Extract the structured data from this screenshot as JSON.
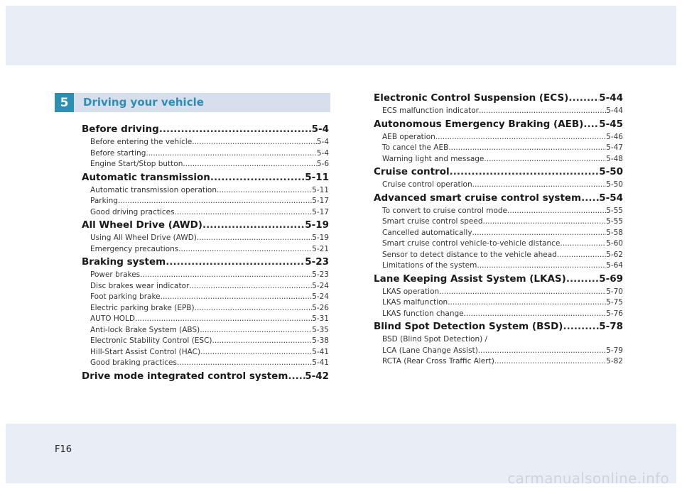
{
  "chapter": {
    "number": "5",
    "title": "Driving your vehicle"
  },
  "left_column": [
    {
      "title": "Before driving",
      "page": "5-4",
      "subs": [
        {
          "title": "Before entering the vehicle",
          "page": "5-4"
        },
        {
          "title": "Before starting",
          "page": "5-4"
        },
        {
          "title": "Engine Start/Stop button",
          "page": "5-6"
        }
      ]
    },
    {
      "title": "Automatic transmission",
      "page": "5-11",
      "subs": [
        {
          "title": "Automatic transmission operation",
          "page": "5-11"
        },
        {
          "title": "Parking",
          "page": "5-17"
        },
        {
          "title": "Good driving practices",
          "page": "5-17"
        }
      ]
    },
    {
      "title": "All Wheel Drive (AWD)",
      "page": "5-19",
      "subs": [
        {
          "title": "Using All Wheel Drive (AWD)",
          "page": "5-19"
        },
        {
          "title": "Emergency precautions",
          "page": "5-21"
        }
      ]
    },
    {
      "title": "Braking system",
      "page": "5-23",
      "subs": [
        {
          "title": "Power brakes",
          "page": "5-23"
        },
        {
          "title": "Disc brakes wear indicator",
          "page": "5-24"
        },
        {
          "title": "Foot parking brake",
          "page": "5-24"
        },
        {
          "title": "Electric parking brake (EPB)",
          "page": "5-26"
        },
        {
          "title": "AUTO HOLD",
          "page": "5-31"
        },
        {
          "title": "Anti-lock Brake System (ABS)",
          "page": "5-35"
        },
        {
          "title": "Electronic Stability Control (ESC)",
          "page": "5-38"
        },
        {
          "title": "Hill-Start  Assist Control (HAC)",
          "page": "5-41"
        },
        {
          "title": "Good braking practices",
          "page": "5-41"
        }
      ]
    },
    {
      "title": "Drive mode integrated control system",
      "page": "5-42",
      "subs": []
    }
  ],
  "right_column": [
    {
      "title": "Electronic Control Suspension (ECS)",
      "page": "5-44",
      "subs": [
        {
          "title": "ECS malfunction indicator",
          "page": "5-44"
        }
      ]
    },
    {
      "title": "Autonomous Emergency Braking (AEB)",
      "page": "5-45",
      "subs": [
        {
          "title": "AEB operation",
          "page": "5-46"
        },
        {
          "title": "To cancel the AEB",
          "page": "5-47"
        },
        {
          "title": "Warning light and message",
          "page": "5-48"
        }
      ]
    },
    {
      "title": "Cruise control",
      "page": "5-50",
      "subs": [
        {
          "title": "Cruise control operation",
          "page": "5-50"
        }
      ]
    },
    {
      "title": "Advanced smart cruise control system",
      "page": "5-54",
      "subs": [
        {
          "title": "To convert to cruise control mode",
          "page": "5-55"
        },
        {
          "title": "Smart cruise control speed",
          "page": "5-55"
        },
        {
          "title": "Cancelled automatically",
          "page": "5-58"
        },
        {
          "title": "Smart cruise control vehicle-to-vehicle distance",
          "page": "5-60"
        },
        {
          "title": "Sensor to detect distance to the vehicle ahead",
          "page": "5-62"
        },
        {
          "title": "Limitations of the system",
          "page": "5-64"
        }
      ]
    },
    {
      "title": "Lane Keeping Assist System (LKAS)",
      "page": "5-69",
      "subs": [
        {
          "title": "LKAS operation",
          "page": "5-70"
        },
        {
          "title": "LKAS malfunction",
          "page": "5-75"
        },
        {
          "title": "LKAS function change",
          "page": "5-76"
        }
      ]
    },
    {
      "title": "Blind Spot Detection System (BSD)",
      "page": "5-78",
      "subs": [
        {
          "title": "BSD (Blind Spot Detection) /",
          "page": "",
          "plain": true
        },
        {
          "title": "LCA (Lane Change Assist)",
          "page": "5-79"
        },
        {
          "title": "RCTA (Rear Cross Traffic Alert)",
          "page": "5-82"
        }
      ]
    }
  ],
  "footer": {
    "page_number": "F16",
    "watermark": "carmanualsonline.info"
  }
}
